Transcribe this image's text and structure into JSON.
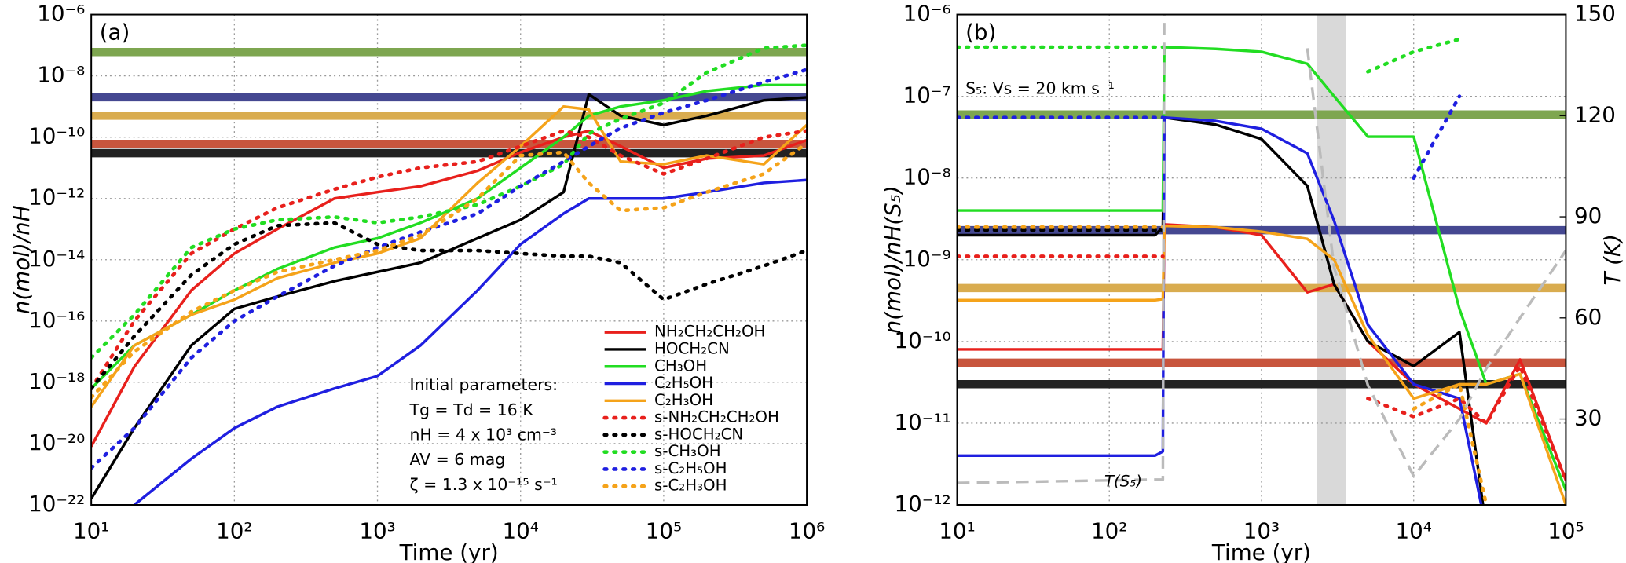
{
  "chart_data": [
    {
      "type": "line",
      "title": "(a)",
      "xlabel": "Time (yr)",
      "ylabel": "n(mol)/nH",
      "log_x": true,
      "log_y": true,
      "grid": true,
      "legend": "lower right",
      "xlim": [
        10,
        1000000
      ],
      "xticks": [
        {
          "value": 10,
          "label": "10¹"
        },
        {
          "value": 100,
          "label": "10²"
        },
        {
          "value": 1000,
          "label": "10³"
        },
        {
          "value": 10000,
          "label": "10⁴"
        },
        {
          "value": 100000,
          "label": "10⁵"
        },
        {
          "value": 1000000,
          "label": "10⁶"
        }
      ],
      "ylim": [
        1e-22,
        1e-06
      ],
      "yticks": [
        {
          "value": 1e-22,
          "label": "10⁻²²"
        },
        {
          "value": 1e-20,
          "label": "10⁻²⁰"
        },
        {
          "value": 1e-18,
          "label": "10⁻¹⁸"
        },
        {
          "value": 1e-16,
          "label": "10⁻¹⁶"
        },
        {
          "value": 1e-14,
          "label": "10⁻¹⁴"
        },
        {
          "value": 1e-12,
          "label": "10⁻¹²"
        },
        {
          "value": 1e-10,
          "label": "10⁻¹⁰"
        },
        {
          "value": 1e-08,
          "label": "10⁻⁸"
        },
        {
          "value": 1e-06,
          "label": "10⁻⁶"
        }
      ],
      "annotations": [
        "Initial parameters:",
        "Tg = Td = 16 K",
        "nH = 4 x 10³ cm⁻³",
        "AV = 6 mag",
        "ζ = 1.3 x 10⁻¹⁵ s⁻¹"
      ],
      "hlines": [
        {
          "value": 6e-08,
          "color": "#7ea650"
        },
        {
          "value": 2e-09,
          "color": "#454891"
        },
        {
          "value": 5e-10,
          "color": "#d9ac4f"
        },
        {
          "value": 6e-11,
          "color": "#c8553d"
        },
        {
          "value": 3e-11,
          "color": "#222222"
        }
      ],
      "x": [
        10,
        20,
        50,
        100,
        200,
        500,
        1000,
        2000,
        5000,
        10000,
        20000,
        30000,
        50000,
        100000,
        200000,
        500000,
        1000000
      ],
      "series": [
        {
          "name": "NH₂CH₂CH₂OH",
          "color": "#e8201c",
          "style": "solid",
          "values": [
            8e-21,
            3.2e-18,
            1e-15,
            1.6e-14,
            1e-13,
            1e-12,
            1.6e-12,
            2.5e-12,
            8e-12,
            3.2e-11,
            1e-10,
            1.6e-10,
            5e-11,
            1e-11,
            2e-11,
            2.5e-11,
            8e-11
          ]
        },
        {
          "name": "HOCH₂CN",
          "color": "#000000",
          "style": "solid",
          "values": [
            1.6e-22,
            3.2e-20,
            1.6e-17,
            2.5e-16,
            6.3e-16,
            2e-15,
            4e-15,
            8e-15,
            5e-14,
            2e-13,
            1.6e-12,
            2.5e-09,
            5e-10,
            2.5e-10,
            5e-10,
            1.6e-09,
            2e-09
          ]
        },
        {
          "name": "CH₃OH",
          "color": "#22dd22",
          "style": "solid",
          "values": [
            6.3e-19,
            1.6e-17,
            1.6e-16,
            1e-15,
            5e-15,
            2.5e-14,
            5e-14,
            1.6e-13,
            1e-12,
            1e-11,
            1e-10,
            5e-10,
            1e-09,
            1.6e-09,
            3.2e-09,
            5e-09,
            5e-09
          ]
        },
        {
          "name": "C₂H₅OH",
          "color": "#1f1fe0",
          "style": "solid",
          "values": [
            null,
            1e-22,
            3.2e-21,
            3.2e-20,
            1.6e-19,
            6.3e-19,
            1.6e-18,
            1.6e-17,
            1e-15,
            3.2e-14,
            3.2e-13,
            1e-12,
            1e-12,
            1e-12,
            1.6e-12,
            3.2e-12,
            4e-12
          ]
        },
        {
          "name": "C₂H₃OH",
          "color": "#f5a31a",
          "style": "solid",
          "values": [
            1.6e-19,
            1.6e-17,
            1.6e-16,
            5e-16,
            2.5e-15,
            8e-15,
            1.6e-14,
            5e-14,
            3.2e-12,
            5e-11,
            1e-09,
            8e-10,
            1.6e-11,
            1.3e-11,
            2.5e-11,
            1.3e-11,
            2.5e-10
          ]
        },
        {
          "name": "s-NH₂CH₂CH₂OH",
          "color": "#e8201c",
          "style": "dotted",
          "values": [
            6.3e-19,
            1e-16,
            1.6e-14,
            1e-13,
            5e-13,
            2e-12,
            5e-12,
            1e-11,
            1.6e-11,
            5e-11,
            1.6e-10,
            1e-10,
            2.5e-11,
            6.3e-12,
            2e-11,
            1e-10,
            1.6e-10
          ]
        },
        {
          "name": "s-HOCH₂CN",
          "color": "#000000",
          "style": "dotted",
          "values": [
            6.3e-19,
            3.2e-17,
            3.2e-15,
            3.2e-14,
            1.3e-13,
            1.6e-13,
            3.2e-14,
            2e-14,
            2e-14,
            1.6e-14,
            1.3e-14,
            1.3e-14,
            8e-15,
            5e-16,
            1.6e-15,
            6.3e-15,
            2e-14
          ]
        },
        {
          "name": "s-CH₃OH",
          "color": "#22dd22",
          "style": "dotted",
          "values": [
            6.3e-18,
            1.6e-16,
            2.5e-14,
            1e-13,
            2e-13,
            2.5e-13,
            1.6e-13,
            2.5e-13,
            6.3e-13,
            2.5e-12,
            1.3e-11,
            1.3e-10,
            4e-10,
            1.3e-09,
            1.3e-08,
            8e-08,
            1e-07
          ]
        },
        {
          "name": "s-C₂H₅OH",
          "color": "#1f1fe0",
          "style": "dotted",
          "values": [
            1.6e-21,
            3.2e-20,
            6.3e-18,
            1e-16,
            6.3e-16,
            6.3e-15,
            2.5e-14,
            8e-14,
            3.2e-13,
            2.5e-12,
            1.6e-11,
            5e-11,
            2e-10,
            6.3e-10,
            1.6e-09,
            6.3e-09,
            1.6e-08
          ]
        },
        {
          "name": "s-C₂H₃OH",
          "color": "#f5a31a",
          "style": "dotted",
          "values": [
            3.2e-19,
            1e-17,
            2e-16,
            1e-15,
            4e-15,
            1e-14,
            2e-14,
            6.3e-14,
            1e-12,
            2.5e-11,
            3.2e-11,
            3.2e-12,
            4e-13,
            5e-13,
            1.6e-12,
            6.3e-12,
            6.3e-11
          ]
        }
      ]
    },
    {
      "type": "line",
      "title": "(b)",
      "xlabel": "Time (yr)",
      "ylabel": "n(mol)/nH(S₅)",
      "y2label": "T (K)",
      "log_x": true,
      "log_y": true,
      "grid": true,
      "xlim": [
        10,
        100000
      ],
      "xticks": [
        {
          "value": 10,
          "label": "10¹"
        },
        {
          "value": 100,
          "label": "10²"
        },
        {
          "value": 1000,
          "label": "10³"
        },
        {
          "value": 10000,
          "label": "10⁴"
        },
        {
          "value": 100000,
          "label": "10⁵"
        }
      ],
      "ylim": [
        1e-12,
        1e-06
      ],
      "yticks": [
        {
          "value": 1e-12,
          "label": "10⁻¹²"
        },
        {
          "value": 1e-11,
          "label": "10⁻¹¹"
        },
        {
          "value": 1e-10,
          "label": "10⁻¹⁰"
        },
        {
          "value": 1e-09,
          "label": "10⁻⁹"
        },
        {
          "value": 1e-08,
          "label": "10⁻⁸"
        },
        {
          "value": 1e-07,
          "label": "10⁻⁷"
        },
        {
          "value": 1e-06,
          "label": "10⁻⁶"
        }
      ],
      "y2lim": [
        4.5,
        150
      ],
      "y2ticks": [
        30,
        60,
        90,
        120,
        150
      ],
      "annotations": [
        "S₅: Vs = 20 km s⁻¹"
      ],
      "shade_x": [
        2300,
        3600
      ],
      "hlines": [
        {
          "value": 6e-08,
          "color": "#7ea650"
        },
        {
          "value": 2.3e-09,
          "color": "#454891"
        },
        {
          "value": 4.5e-10,
          "color": "#d9ac4f"
        },
        {
          "value": 5.5e-11,
          "color": "#c8553d"
        },
        {
          "value": 3e-11,
          "color": "#222222"
        }
      ],
      "x": [
        10,
        200,
        225,
        230,
        500,
        1000,
        2000,
        3000,
        5000,
        10000,
        20000,
        30000,
        50000,
        100000
      ],
      "series": [
        {
          "color": "#e8201c",
          "style": "solid",
          "values": [
            8e-11,
            8e-11,
            8e-11,
            2.7e-09,
            2.5e-09,
            2e-09,
            4e-10,
            5e-10,
            1e-10,
            3e-11,
            1.5e-11,
            1e-11,
            6e-11,
            2e-12
          ]
        },
        {
          "color": "#000000",
          "style": "solid",
          "values": [
            2e-09,
            2e-09,
            2.5e-09,
            5.5e-08,
            4.5e-08,
            3e-08,
            8e-09,
            5e-10,
            1e-10,
            5e-11,
            1.3e-10,
            5e-13,
            null,
            null
          ]
        },
        {
          "color": "#22dd22",
          "style": "solid",
          "values": [
            4e-09,
            4e-09,
            4e-09,
            4e-07,
            3.8e-07,
            3.5e-07,
            2.5e-07,
            1e-07,
            3.2e-08,
            3.2e-08,
            2.5e-10,
            3e-11,
            4e-11,
            1.5e-12
          ]
        },
        {
          "color": "#1f1fe0",
          "style": "solid",
          "values": [
            4e-12,
            4e-12,
            4.5e-12,
            5.5e-08,
            5e-08,
            4e-08,
            2e-08,
            3e-09,
            1.6e-10,
            3e-11,
            2e-11,
            5e-13,
            null,
            null
          ]
        },
        {
          "color": "#f5a31a",
          "style": "solid",
          "values": [
            3.2e-10,
            3.2e-10,
            3.3e-10,
            2.6e-09,
            2.5e-09,
            2.2e-09,
            1.8e-09,
            1e-09,
            1.2e-10,
            2e-11,
            3e-11,
            3e-11,
            4e-11,
            1e-12
          ]
        },
        {
          "color": "#e8201c",
          "style": "dotted",
          "values": [
            1.1e-09,
            1.1e-09,
            1.1e-09,
            null,
            null,
            null,
            null,
            null,
            2e-11,
            1.2e-11,
            2e-11,
            1e-11,
            5e-11,
            2e-12
          ]
        },
        {
          "color": "#000000",
          "style": "dotted",
          "values": [
            2.3e-09,
            2.3e-09,
            2.3e-09,
            null,
            null,
            null,
            null,
            null,
            null,
            null,
            null,
            null,
            null,
            null
          ]
        },
        {
          "color": "#22dd22",
          "style": "dotted",
          "values": [
            4e-07,
            4e-07,
            4e-07,
            null,
            null,
            null,
            null,
            null,
            2e-07,
            3.5e-07,
            5e-07,
            null,
            null,
            null
          ]
        },
        {
          "color": "#1f1fe0",
          "style": "dotted",
          "values": [
            5.5e-08,
            5.5e-08,
            5.5e-08,
            null,
            null,
            null,
            null,
            null,
            null,
            1e-08,
            1e-07,
            null,
            null,
            null
          ]
        },
        {
          "color": "#f5a31a",
          "style": "dotted",
          "values": [
            2.5e-09,
            2.5e-09,
            2.5e-09,
            null,
            null,
            null,
            null,
            null,
            null,
            1.5e-11,
            3e-11,
            1e-12,
            null,
            null
          ]
        },
        {
          "name": "T(S₅)",
          "color": "#bbbbbb",
          "style": "dashed",
          "axis": "y2",
          "values": [
            11,
            12,
            12,
            160,
            null,
            null,
            140,
            75,
            40,
            13,
            30,
            45,
            60,
            80
          ]
        }
      ]
    }
  ]
}
